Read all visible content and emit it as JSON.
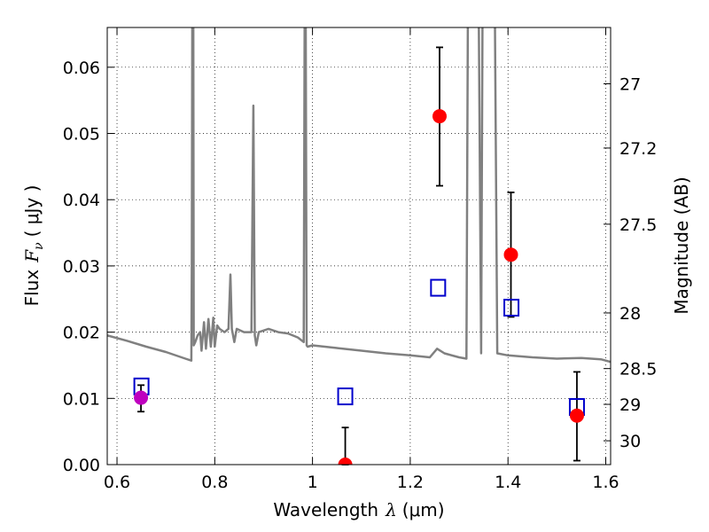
{
  "chart_data": {
    "type": "scatter",
    "xlabel": "Wavelength",
    "xlabel_symbol": "λ",
    "xlabel_unit": "(μm)",
    "ylabel": "Flux",
    "ylabel_symbol": "F",
    "ylabel_sub": "ν",
    "ylabel_unit": "( μJy )",
    "y2label": "Magnitude (AB)",
    "xlim": [
      0.58,
      1.61
    ],
    "ylim": [
      0.0,
      0.066
    ],
    "grid": true,
    "grid_style": "dotted",
    "x_ticks": [
      0.6,
      0.8,
      1.0,
      1.2,
      1.4,
      1.6
    ],
    "x_tick_labels": [
      "0.6",
      "0.8",
      "1",
      "1.2",
      "1.4",
      "1.6"
    ],
    "y_ticks": [
      0.0,
      0.01,
      0.02,
      0.03,
      0.04,
      0.05,
      0.06
    ],
    "y_tick_labels": [
      "0.00",
      "0.01",
      "0.02",
      "0.03",
      "0.04",
      "0.05",
      "0.06"
    ],
    "y2_ticks": [
      {
        "label": "27",
        "flux": 0.0575
      },
      {
        "label": "27.2",
        "flux": 0.0478
      },
      {
        "label": "27.5",
        "flux": 0.0363
      },
      {
        "label": "28",
        "flux": 0.0229
      },
      {
        "label": "28.5",
        "flux": 0.0145
      },
      {
        "label": "29",
        "flux": 0.0091
      },
      {
        "label": "30",
        "flux": 0.0036
      }
    ],
    "colors": {
      "model": "#808080",
      "observed": "#ff0000",
      "observed_alt": "#bf00bf",
      "model_band": "#0000cc",
      "errorbar": "#000000",
      "grid": "#000000"
    },
    "series": [
      {
        "kind": "model_spectrum",
        "points": [
          [
            0.58,
            0.0195
          ],
          [
            0.62,
            0.0187
          ],
          [
            0.66,
            0.0178
          ],
          [
            0.7,
            0.017
          ],
          [
            0.74,
            0.016
          ],
          [
            0.752,
            0.0157
          ],
          [
            0.753,
            0.03
          ],
          [
            0.754,
            0.07
          ],
          [
            0.756,
            0.07
          ],
          [
            0.757,
            0.018
          ],
          [
            0.76,
            0.0185
          ],
          [
            0.765,
            0.0195
          ],
          [
            0.77,
            0.02
          ],
          [
            0.773,
            0.0172
          ],
          [
            0.778,
            0.0215
          ],
          [
            0.782,
            0.0175
          ],
          [
            0.787,
            0.022
          ],
          [
            0.792,
            0.0178
          ],
          [
            0.797,
            0.0222
          ],
          [
            0.8,
            0.0178
          ],
          [
            0.805,
            0.021
          ],
          [
            0.81,
            0.0205
          ],
          [
            0.82,
            0.02
          ],
          [
            0.828,
            0.0205
          ],
          [
            0.832,
            0.0287
          ],
          [
            0.835,
            0.0205
          ],
          [
            0.84,
            0.0185
          ],
          [
            0.845,
            0.0205
          ],
          [
            0.86,
            0.02
          ],
          [
            0.875,
            0.02
          ],
          [
            0.879,
            0.0542
          ],
          [
            0.882,
            0.0195
          ],
          [
            0.885,
            0.018
          ],
          [
            0.89,
            0.02
          ],
          [
            0.91,
            0.0205
          ],
          [
            0.93,
            0.02
          ],
          [
            0.95,
            0.0198
          ],
          [
            0.97,
            0.0192
          ],
          [
            0.982,
            0.0185
          ],
          [
            0.984,
            0.07
          ],
          [
            0.986,
            0.07
          ],
          [
            0.988,
            0.018
          ],
          [
            0.99,
            0.0178
          ],
          [
            1.0,
            0.018
          ],
          [
            1.05,
            0.0176
          ],
          [
            1.1,
            0.0172
          ],
          [
            1.15,
            0.0168
          ],
          [
            1.2,
            0.0165
          ],
          [
            1.24,
            0.0162
          ],
          [
            1.255,
            0.0175
          ],
          [
            1.27,
            0.0168
          ],
          [
            1.3,
            0.0162
          ],
          [
            1.315,
            0.016
          ],
          [
            1.318,
            0.07
          ],
          [
            1.34,
            0.07
          ],
          [
            1.345,
            0.0168
          ],
          [
            1.348,
            0.07
          ],
          [
            1.355,
            0.07
          ],
          [
            1.373,
            0.07
          ],
          [
            1.378,
            0.0168
          ],
          [
            1.4,
            0.0165
          ],
          [
            1.45,
            0.0162
          ],
          [
            1.5,
            0.016
          ],
          [
            1.55,
            0.0161
          ],
          [
            1.59,
            0.0159
          ],
          [
            1.61,
            0.0155
          ]
        ]
      },
      {
        "kind": "model_band",
        "name": "",
        "points": [
          [
            0.65,
            0.0118
          ],
          [
            1.067,
            0.0103
          ],
          [
            1.257,
            0.0267
          ],
          [
            1.407,
            0.0237
          ],
          [
            1.541,
            0.0087
          ]
        ]
      },
      {
        "kind": "observed",
        "name": "",
        "points": [
          {
            "x": 0.649,
            "y": 0.0101,
            "yerr_lo": 0.008,
            "yerr_hi": 0.012,
            "color": "observed_alt"
          },
          {
            "x": 1.067,
            "y": 0.0,
            "yerr_lo": 0.0,
            "yerr_hi": 0.0056,
            "color": "observed"
          },
          {
            "x": 1.26,
            "y": 0.0526,
            "yerr_lo": 0.0421,
            "yerr_hi": 0.063,
            "color": "observed"
          },
          {
            "x": 1.406,
            "y": 0.0317,
            "yerr_lo": 0.0223,
            "yerr_hi": 0.0411,
            "color": "observed"
          },
          {
            "x": 1.541,
            "y": 0.0074,
            "yerr_lo": 0.0006,
            "yerr_hi": 0.014,
            "color": "observed"
          }
        ]
      }
    ]
  }
}
